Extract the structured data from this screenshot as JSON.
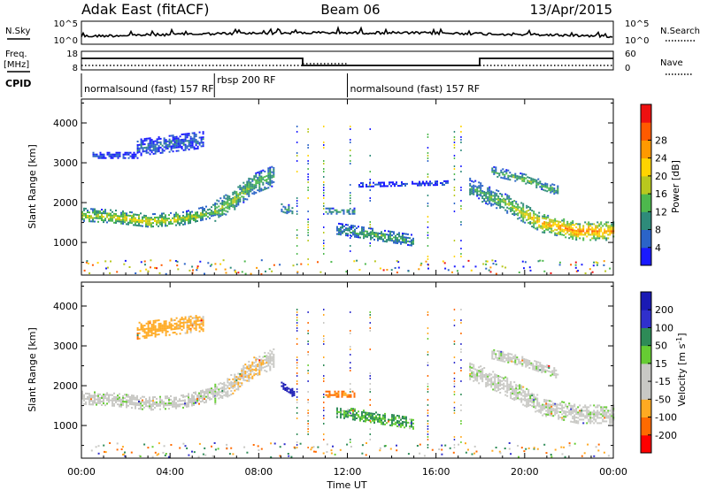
{
  "header": {
    "station": "Adak East (fitACF)",
    "beam": "Beam 06",
    "date": "13/Apr/2015"
  },
  "labels": {
    "nsky": "N.Sky",
    "nsearch": "N.Search",
    "freq_line1": "Freq.",
    "freq_line2": "[MHz]",
    "nave": "Nave",
    "cpid": "CPID"
  },
  "noise_panel": {
    "left_ticks": [
      "10^5",
      "10^0"
    ],
    "right_ticks": [
      "10^5",
      "10^0"
    ]
  },
  "freq_panel": {
    "left_ticks": [
      "18",
      "8"
    ],
    "right_ticks": [
      "60",
      "0"
    ]
  },
  "cpid_segments": [
    {
      "label": "normalsound (fast) 157 RF",
      "start_hour": 0,
      "end_hour": 6
    },
    {
      "label": "rbsp 200 RF",
      "start_hour": 6,
      "end_hour": 12
    },
    {
      "label": "normalsound (fast) 157 RF",
      "start_hour": 12,
      "end_hour": 24
    }
  ],
  "x_axis": {
    "label": "Time UT",
    "ticks": [
      "00:00",
      "04:00",
      "08:00",
      "12:00",
      "16:00",
      "20:00",
      "00:00"
    ]
  },
  "colors": {
    "power_scale": [
      "#1a1aff",
      "#2b64c8",
      "#2e8b7a",
      "#4db84d",
      "#b8c81e",
      "#ffd400",
      "#ff9900",
      "#ff5a00",
      "#ee1010"
    ],
    "velocity_scale": [
      "#ff0000",
      "#ff6a00",
      "#ffaa22",
      "#c8c8c4",
      "#c8c8c4",
      "#66cc33",
      "#2e8b57",
      "#3030cc",
      "#1a1ab4"
    ]
  },
  "chart_data": [
    {
      "type": "heatmap",
      "name": "power",
      "ylabel": "Slant Range [km]",
      "yticks": [
        1000,
        2000,
        3000,
        4000
      ],
      "ylim": [
        180,
        4600
      ],
      "xlim_hours": [
        0,
        24
      ],
      "colorbar": {
        "label": "Power [dB]",
        "ticks": [
          4,
          8,
          12,
          16,
          20,
          24,
          28
        ],
        "range": [
          0,
          30
        ]
      },
      "echo_regions": [
        {
          "start_hour": 0.0,
          "end_hour": 6.0,
          "range_center_km": [
            1700,
            1650,
            1550,
            1600,
            1800
          ],
          "range_width_km": 350,
          "power_db": [
            14,
            16,
            17,
            15,
            12
          ]
        },
        {
          "start_hour": 6.0,
          "end_hour": 8.7,
          "range_center_km": [
            1800,
            2100,
            2500,
            2700
          ],
          "range_width_km": 500,
          "power_db": [
            13,
            14,
            12,
            10
          ]
        },
        {
          "start_hour": 2.5,
          "end_hour": 5.5,
          "range_center_km": [
            3400,
            3600
          ],
          "range_width_km": 400,
          "power_db": [
            5,
            6
          ]
        },
        {
          "start_hour": 0.5,
          "end_hour": 2.5,
          "range_center_km": [
            3200,
            3200
          ],
          "range_width_km": 150,
          "power_db": [
            4,
            4
          ]
        },
        {
          "start_hour": 9.0,
          "end_hour": 9.5,
          "range_center_km": [
            1900,
            1800
          ],
          "range_width_km": 250,
          "power_db": [
            10,
            8
          ]
        },
        {
          "start_hour": 11.0,
          "end_hour": 12.3,
          "range_center_km": [
            1800,
            1800
          ],
          "range_width_km": 150,
          "power_db": [
            11,
            10
          ]
        },
        {
          "start_hour": 11.5,
          "end_hour": 15.0,
          "range_center_km": [
            1350,
            1200,
            1050
          ],
          "range_width_km": 300,
          "power_db": [
            8,
            12,
            9
          ]
        },
        {
          "start_hour": 12.5,
          "end_hour": 16.5,
          "range_center_km": [
            2450,
            2500
          ],
          "range_width_km": 120,
          "power_db": [
            4,
            4
          ]
        },
        {
          "start_hour": 17.5,
          "end_hour": 24.0,
          "range_center_km": [
            2400,
            2000,
            1500,
            1300,
            1300
          ],
          "range_width_km": 450,
          "power_db": [
            8,
            14,
            20,
            24,
            22
          ]
        },
        {
          "start_hour": 18.5,
          "end_hour": 21.5,
          "range_center_km": [
            2800,
            2600,
            2300
          ],
          "range_width_km": 250,
          "power_db": [
            10,
            12,
            10
          ]
        }
      ]
    },
    {
      "type": "heatmap",
      "name": "velocity",
      "ylabel": "Slant Range [km]",
      "yticks": [
        1000,
        2000,
        3000,
        4000
      ],
      "ylim": [
        180,
        4600
      ],
      "xlim_hours": [
        0,
        24
      ],
      "colorbar": {
        "label": "Velocity [m s^-1]",
        "ticks": [
          200,
          100,
          50,
          15,
          -15,
          -50,
          -100,
          -200
        ],
        "range": [
          -250,
          250
        ]
      },
      "echo_regions": [
        {
          "start_hour": 0.0,
          "end_hour": 6.0,
          "range_center_km": [
            1700,
            1650,
            1550,
            1600,
            1800
          ],
          "range_width_km": 350,
          "velocity_ms": [
            0,
            0,
            0,
            0,
            0
          ]
        },
        {
          "start_hour": 6.0,
          "end_hour": 8.7,
          "range_center_km": [
            1800,
            2100,
            2500,
            2700
          ],
          "range_width_km": 500,
          "velocity_ms": [
            0,
            -20,
            -40,
            0
          ]
        },
        {
          "start_hour": 2.5,
          "end_hour": 5.5,
          "range_center_km": [
            3400,
            3600
          ],
          "range_width_km": 400,
          "velocity_ms": [
            -60,
            -40
          ]
        },
        {
          "start_hour": 9.0,
          "end_hour": 9.6,
          "range_center_km": [
            2000,
            1800
          ],
          "range_width_km": 200,
          "velocity_ms": [
            220,
            200
          ]
        },
        {
          "start_hour": 11.0,
          "end_hour": 12.3,
          "range_center_km": [
            1800,
            1800
          ],
          "range_width_km": 150,
          "velocity_ms": [
            -80,
            -80
          ]
        },
        {
          "start_hour": 11.5,
          "end_hour": 15.0,
          "range_center_km": [
            1350,
            1200,
            1050
          ],
          "range_width_km": 300,
          "velocity_ms": [
            30,
            40,
            30
          ]
        },
        {
          "start_hour": 17.5,
          "end_hour": 24.0,
          "range_center_km": [
            2400,
            2000,
            1500,
            1300,
            1300
          ],
          "range_width_km": 450,
          "velocity_ms": [
            0,
            0,
            0,
            0,
            0
          ]
        },
        {
          "start_hour": 18.5,
          "end_hour": 21.5,
          "range_center_km": [
            2800,
            2600,
            2300
          ],
          "range_width_km": 250,
          "velocity_ms": [
            0,
            0,
            0
          ]
        }
      ]
    }
  ]
}
